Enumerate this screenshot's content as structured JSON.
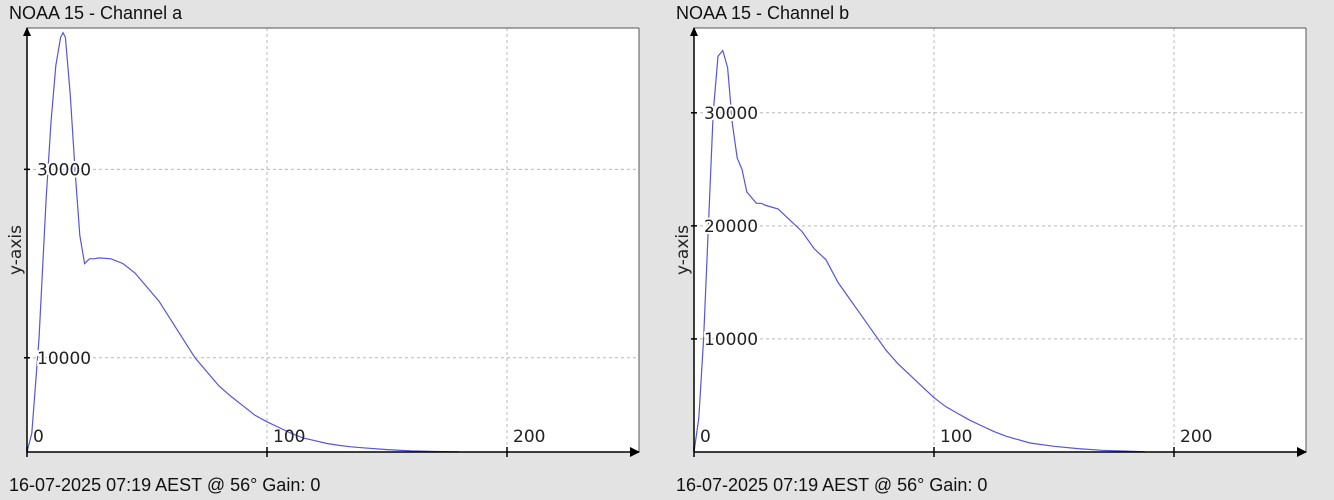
{
  "panels": [
    {
      "title": "NOAA 15 - Channel a",
      "footer": "16-07-2025 07:19 AEST @ 56° Gain: 0",
      "ylabel": "y-axis"
    },
    {
      "title": "NOAA 15 - Channel b",
      "footer": "16-07-2025 07:19 AEST @ 56° Gain: 0",
      "ylabel": "y-axis"
    }
  ],
  "colors": {
    "line": "#5555dd",
    "grid": "#b8b8b8",
    "axis": "#000000",
    "plot_bg": "#ffffff"
  },
  "chart_data": [
    {
      "type": "line",
      "title": "NOAA 15 - Channel a",
      "ylabel": "y-axis",
      "xlim": [
        0,
        255
      ],
      "ylim": [
        0,
        45000
      ],
      "xticks": [
        0,
        100,
        200
      ],
      "xtick_labels": [
        "0",
        "100",
        "200"
      ],
      "yticks": [
        10000,
        30000
      ],
      "ytick_labels": [
        "10000",
        "30000"
      ],
      "grid": true,
      "series": [
        {
          "x": [
            0,
            2,
            5,
            8,
            10,
            12,
            14,
            15,
            16,
            18,
            20,
            22,
            24,
            26,
            28,
            30,
            35,
            40,
            45,
            50,
            55,
            60,
            65,
            70,
            75,
            80,
            85,
            90,
            95,
            100,
            105,
            110,
            115,
            120,
            125,
            130,
            135,
            140,
            150,
            160,
            170,
            180
          ],
          "y": [
            0,
            2000,
            12000,
            27000,
            35000,
            41000,
            44000,
            44500,
            44000,
            38000,
            30000,
            23000,
            20000,
            20500,
            20500,
            20600,
            20500,
            20000,
            19000,
            17500,
            16000,
            14000,
            12000,
            10000,
            8500,
            7000,
            5900,
            4900,
            3900,
            3200,
            2600,
            2000,
            1500,
            1200,
            900,
            700,
            550,
            450,
            250,
            120,
            50,
            20
          ]
        }
      ]
    },
    {
      "type": "line",
      "title": "NOAA 15 - Channel b",
      "ylabel": "y-axis",
      "xlim": [
        0,
        255
      ],
      "ylim": [
        0,
        37500
      ],
      "xticks": [
        0,
        100,
        200
      ],
      "xtick_labels": [
        "0",
        "100",
        "200"
      ],
      "yticks": [
        10000,
        20000,
        30000
      ],
      "ytick_labels": [
        "10000",
        "20000",
        "30000"
      ],
      "grid": true,
      "series": [
        {
          "x": [
            0,
            2,
            4,
            6,
            8,
            10,
            12,
            14,
            16,
            18,
            20,
            22,
            24,
            26,
            28,
            30,
            35,
            40,
            45,
            50,
            55,
            60,
            65,
            70,
            75,
            80,
            85,
            90,
            95,
            100,
            105,
            110,
            115,
            120,
            125,
            130,
            140,
            150,
            160,
            170,
            180,
            188
          ],
          "y": [
            0,
            3000,
            10000,
            20000,
            30000,
            35000,
            35500,
            34000,
            29000,
            26000,
            25000,
            23000,
            22500,
            22000,
            22000,
            21800,
            21500,
            20500,
            19500,
            18000,
            17000,
            15000,
            13500,
            12000,
            10500,
            9000,
            7800,
            6800,
            5800,
            4800,
            4000,
            3400,
            2800,
            2300,
            1800,
            1400,
            800,
            500,
            300,
            150,
            80,
            20
          ]
        }
      ]
    }
  ]
}
